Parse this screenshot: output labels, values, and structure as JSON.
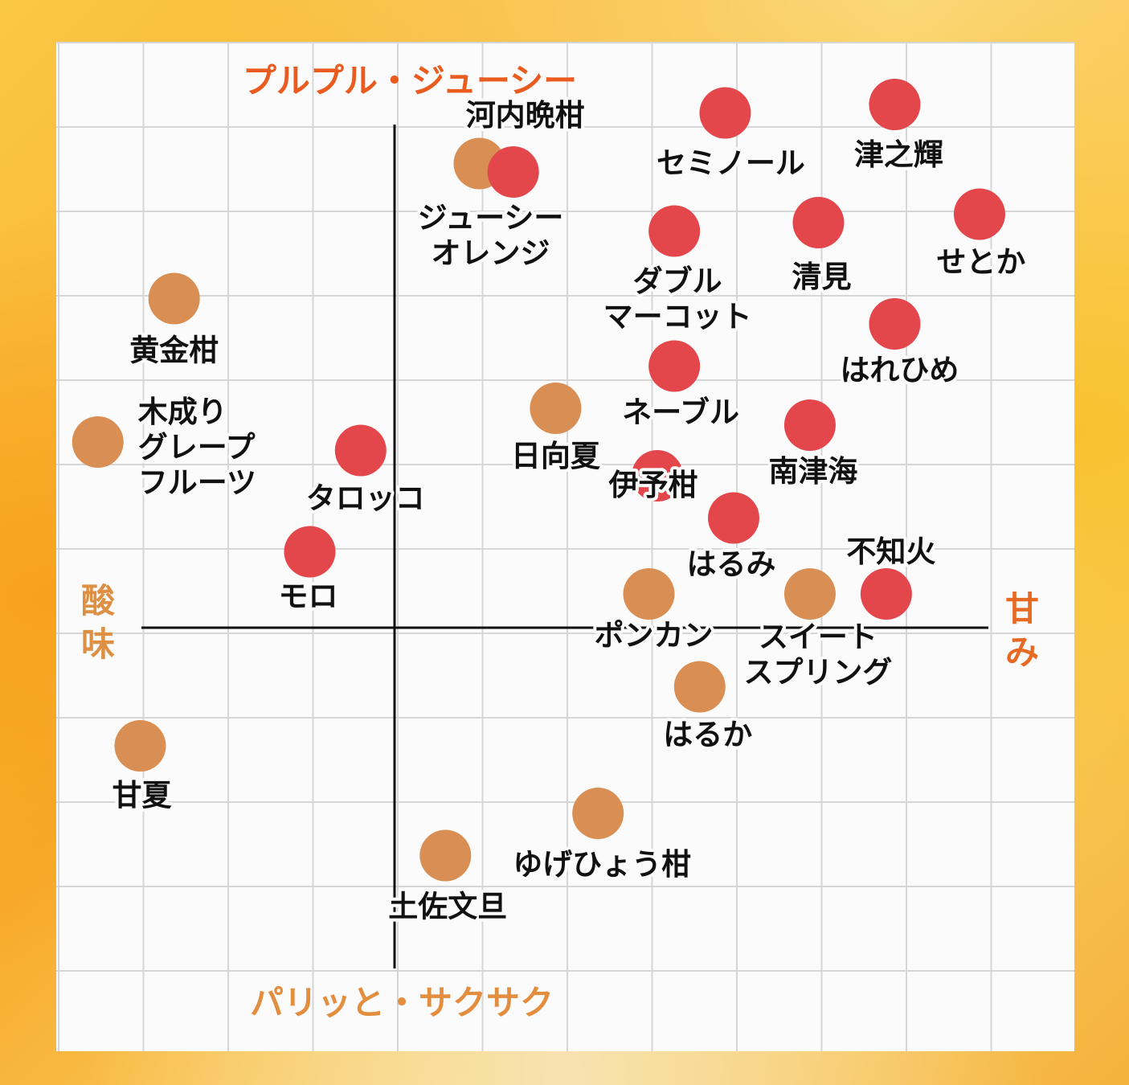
{
  "chart_data": {
    "type": "scatter",
    "axes": {
      "top": "プルプル・ジューシー",
      "bottom": "パリッと・サクサク",
      "left": "酸味",
      "right": "甘み"
    },
    "grid": true,
    "colors": {
      "red": "#e3474c",
      "orange": "#d98f53",
      "top_label": "#e95b1e",
      "bottom_label": "#e38d3f",
      "left_label": "#dd9044",
      "right_label": "#e76a24"
    },
    "series": [
      {
        "color": "#e3474c",
        "points": [
          {
            "name": "河内晩柑",
            "x": 1.4,
            "y": 5.4
          },
          {
            "name": "セミノール",
            "x": 3.9,
            "y": 6.1
          },
          {
            "name": "津之輝",
            "x": 5.9,
            "y": 6.2
          },
          {
            "name": "ダブル\nマーコット",
            "x": 3.3,
            "y": 4.7
          },
          {
            "name": "清見",
            "x": 5.0,
            "y": 4.8
          },
          {
            "name": "せとか",
            "x": 6.9,
            "y": 4.9
          },
          {
            "name": "はれひめ",
            "x": 5.9,
            "y": 3.6
          },
          {
            "name": "ネーブル",
            "x": 3.3,
            "y": 3.1
          },
          {
            "name": "南津海",
            "x": 4.9,
            "y": 2.4
          },
          {
            "name": "タロッコ",
            "x": -0.4,
            "y": 2.1
          },
          {
            "name": "伊予柑",
            "x": 3.1,
            "y": 1.8
          },
          {
            "name": "はるみ",
            "x": 4.0,
            "y": 1.3
          },
          {
            "name": "モロ",
            "x": -1.0,
            "y": 0.9
          },
          {
            "name": "不知火",
            "x": 5.8,
            "y": 0.4
          }
        ]
      },
      {
        "color": "#d98f53",
        "points": [
          {
            "name": "ジューシー\nオレンジ",
            "x": 1.0,
            "y": 5.5
          },
          {
            "name": "黄金柑",
            "x": -2.6,
            "y": 3.9
          },
          {
            "name": "木成り\nグレープ\nフルーツ",
            "x": -3.5,
            "y": 2.2
          },
          {
            "name": "日向夏",
            "x": 1.9,
            "y": 2.6
          },
          {
            "name": "ポンカン",
            "x": 3.0,
            "y": 0.4
          },
          {
            "name": "スイート\nスプリング",
            "x": 4.9,
            "y": 0.4
          },
          {
            "name": "はるか",
            "x": 3.6,
            "y": -0.7
          },
          {
            "name": "甘夏",
            "x": -3.0,
            "y": -1.4
          },
          {
            "name": "ゆげひょう柑",
            "x": 2.4,
            "y": -2.2
          },
          {
            "name": "土佐文旦",
            "x": 0.6,
            "y": -2.7
          }
        ]
      }
    ]
  }
}
